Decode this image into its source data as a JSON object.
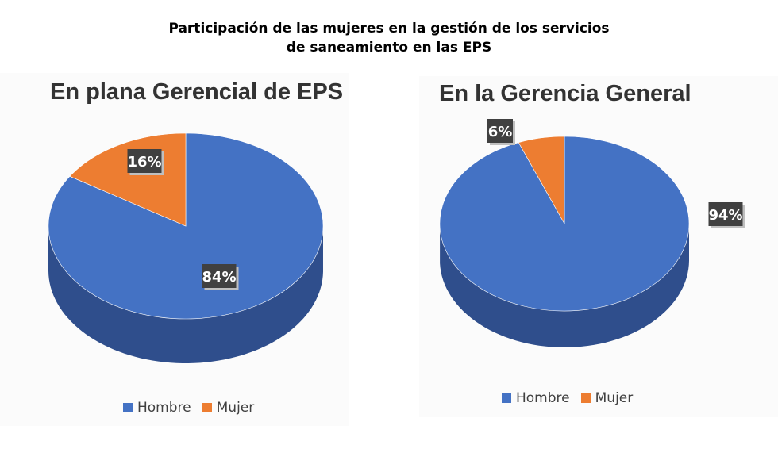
{
  "header": {
    "title_line1": "Participación de las mujeres en la gestión de los servicios",
    "title_line2": "de saneamiento en las EPS"
  },
  "colors": {
    "hombre": "#4472C4",
    "hombre_side": "#2F4E8C",
    "mujer": "#ED7D31",
    "mujer_side": "#B0581F",
    "label_bg": "#404040"
  },
  "chart_data": [
    {
      "type": "pie",
      "title": "En plana Gerencial de EPS",
      "categories": [
        "Hombre",
        "Mujer"
      ],
      "values": [
        84,
        16
      ],
      "data_labels": [
        "84%",
        "16%"
      ],
      "legend": {
        "position": "bottom",
        "entries": [
          "Hombre",
          "Mujer"
        ]
      }
    },
    {
      "type": "pie",
      "title": "En la Gerencia General",
      "categories": [
        "Hombre",
        "Mujer"
      ],
      "values": [
        94,
        6
      ],
      "data_labels": [
        "94%",
        "6%"
      ],
      "legend": {
        "position": "bottom",
        "entries": [
          "Hombre",
          "Mujer"
        ]
      }
    }
  ]
}
